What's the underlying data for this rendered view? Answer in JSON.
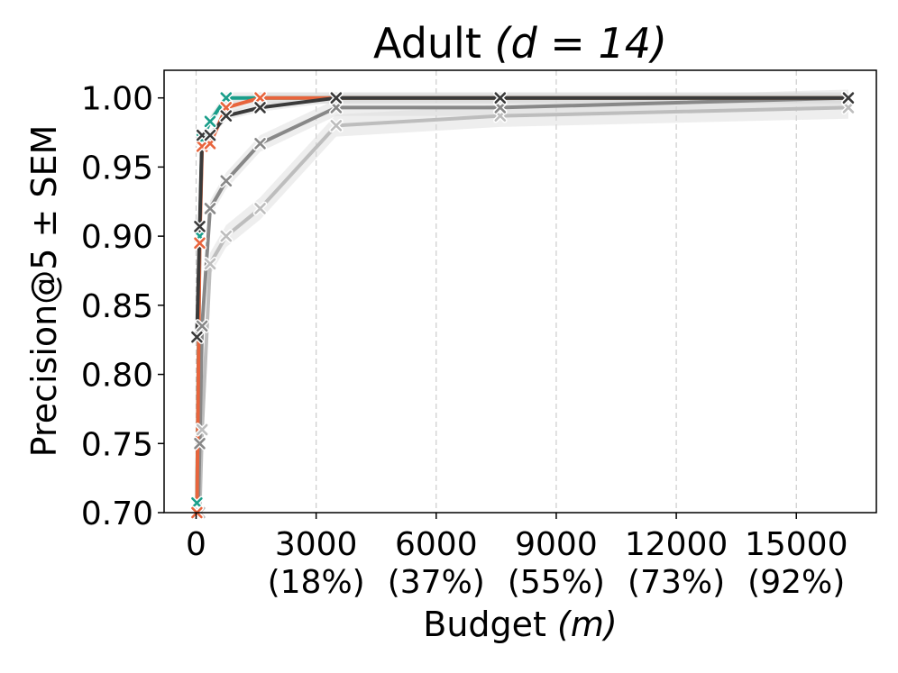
{
  "chart_data": {
    "type": "line",
    "title": "Adult",
    "title_math": "(d = 14)",
    "xlabel": "Budget",
    "xlabel_math": "(m)",
    "ylabel": "Precision@5 ± SEM",
    "xlim": [
      -800,
      17000
    ],
    "ylim": [
      0.7,
      1.02
    ],
    "grid": "x-dashed",
    "x_ticks": [
      {
        "value": 0,
        "label": "0",
        "sub": ""
      },
      {
        "value": 3000,
        "label": "3000",
        "sub": "(18%)"
      },
      {
        "value": 6000,
        "label": "6000",
        "sub": "(37%)"
      },
      {
        "value": 9000,
        "label": "9000",
        "sub": "(55%)"
      },
      {
        "value": 12000,
        "label": "12000",
        "sub": "(73%)"
      },
      {
        "value": 15000,
        "label": "15000",
        "sub": "(92%)"
      }
    ],
    "y_ticks": [
      {
        "value": 0.7,
        "label": "0.70"
      },
      {
        "value": 0.75,
        "label": "0.75"
      },
      {
        "value": 0.8,
        "label": "0.80"
      },
      {
        "value": 0.85,
        "label": "0.85"
      },
      {
        "value": 0.9,
        "label": "0.90"
      },
      {
        "value": 0.95,
        "label": "0.95"
      },
      {
        "value": 1.0,
        "label": "1.00"
      }
    ],
    "series": [
      {
        "color": "#bdbdbd",
        "band": 0.008,
        "x": [
          20,
          90,
          150,
          350,
          750,
          1600,
          3500,
          7600,
          16300
        ],
        "y": [
          0.66,
          0.7,
          0.76,
          0.88,
          0.9,
          0.92,
          0.98,
          0.987,
          0.993
        ]
      },
      {
        "color": "#888888",
        "band": 0.006,
        "x": [
          20,
          90,
          150,
          350,
          750,
          1600,
          3500,
          7600,
          16300
        ],
        "y": [
          0.66,
          0.75,
          0.835,
          0.92,
          0.94,
          0.967,
          0.993,
          0.993,
          1.0
        ]
      },
      {
        "color": "#1a9e8a",
        "band": 0.004,
        "x": [
          20,
          90,
          150,
          350,
          750,
          1600,
          3500,
          7600,
          16300
        ],
        "y": [
          0.707,
          0.9,
          0.97,
          0.983,
          1.0,
          1.0,
          1.0,
          1.0,
          1.0
        ]
      },
      {
        "color": "#e8643c",
        "band": 0.004,
        "x": [
          20,
          90,
          150,
          350,
          750,
          1600,
          3500,
          7600,
          16300
        ],
        "y": [
          0.7,
          0.895,
          0.965,
          0.967,
          0.993,
          1.0,
          1.0,
          1.0,
          1.0
        ]
      },
      {
        "color": "#3a3a3a",
        "band": 0.003,
        "x": [
          20,
          90,
          150,
          350,
          750,
          1600,
          3500,
          7600,
          16300
        ],
        "y": [
          0.827,
          0.907,
          0.973,
          0.973,
          0.987,
          0.993,
          1.0,
          1.0,
          1.0
        ]
      }
    ]
  }
}
